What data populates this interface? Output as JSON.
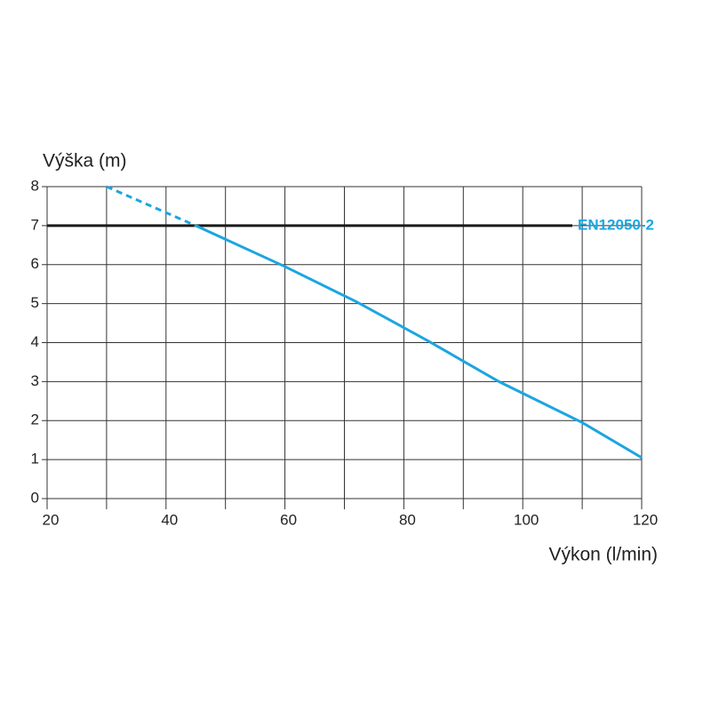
{
  "chart_data": {
    "type": "line",
    "y_label": "Výška (m)",
    "x_label": "Výkon (l/min)",
    "xlim": [
      20,
      120
    ],
    "xticks": [
      20,
      40,
      60,
      80,
      100,
      120
    ],
    "xgrid": [
      20,
      30,
      40,
      50,
      60,
      70,
      80,
      90,
      100,
      110,
      120
    ],
    "ylim": [
      0,
      8
    ],
    "yticks": [
      0,
      1,
      2,
      3,
      4,
      5,
      6,
      7,
      8
    ],
    "grid": true,
    "series": [
      {
        "color": "#1ba6e0",
        "dashed": true,
        "x": [
          30,
          45
        ],
        "values": [
          8,
          7
        ]
      },
      {
        "color": "#1ba6e0",
        "dashed": false,
        "x": [
          45,
          60,
          72,
          84,
          96,
          110,
          120
        ],
        "values": [
          7,
          5.95,
          5.05,
          4.05,
          3.0,
          1.95,
          1.05
        ]
      }
    ],
    "reference_line": {
      "value": 7,
      "label": "EN12050-2",
      "color": "#1a1a1a",
      "label_color": "#1ba6e0"
    }
  }
}
